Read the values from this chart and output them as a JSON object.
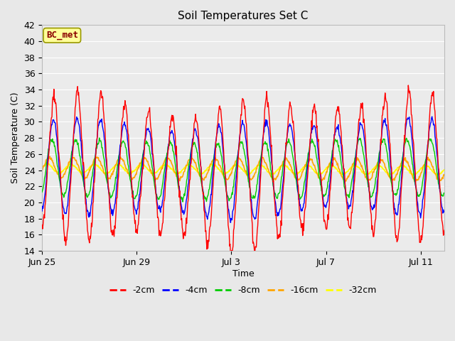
{
  "title": "Soil Temperatures Set C",
  "xlabel": "Time",
  "ylabel": "Soil Temperature (C)",
  "ylim": [
    14,
    42
  ],
  "yticks": [
    14,
    16,
    18,
    20,
    22,
    24,
    26,
    28,
    30,
    32,
    34,
    36,
    38,
    40,
    42
  ],
  "annotation": "BC_met",
  "annotation_color": "#8B0000",
  "annotation_bg": "#FFFF99",
  "annotation_edge": "#999900",
  "fig_bg": "#E8E8E8",
  "plot_bg": "#EBEBEB",
  "grid_color": "#FFFFFF",
  "series": [
    {
      "label": "-2cm",
      "color": "#FF0000"
    },
    {
      "label": "-4cm",
      "color": "#0000FF"
    },
    {
      "label": "-8cm",
      "color": "#00CC00"
    },
    {
      "label": "-16cm",
      "color": "#FFA500"
    },
    {
      "label": "-32cm",
      "color": "#FFFF00"
    }
  ],
  "xtick_labels": [
    "Jun 25",
    "Jun 29",
    "Jul 3",
    "Jul 7",
    "Jul 11"
  ],
  "xtick_days_from_start": [
    0,
    4,
    8,
    12,
    16
  ],
  "n_days": 17,
  "title_fontsize": 11,
  "label_fontsize": 9,
  "tick_fontsize": 9,
  "legend_fontsize": 9
}
